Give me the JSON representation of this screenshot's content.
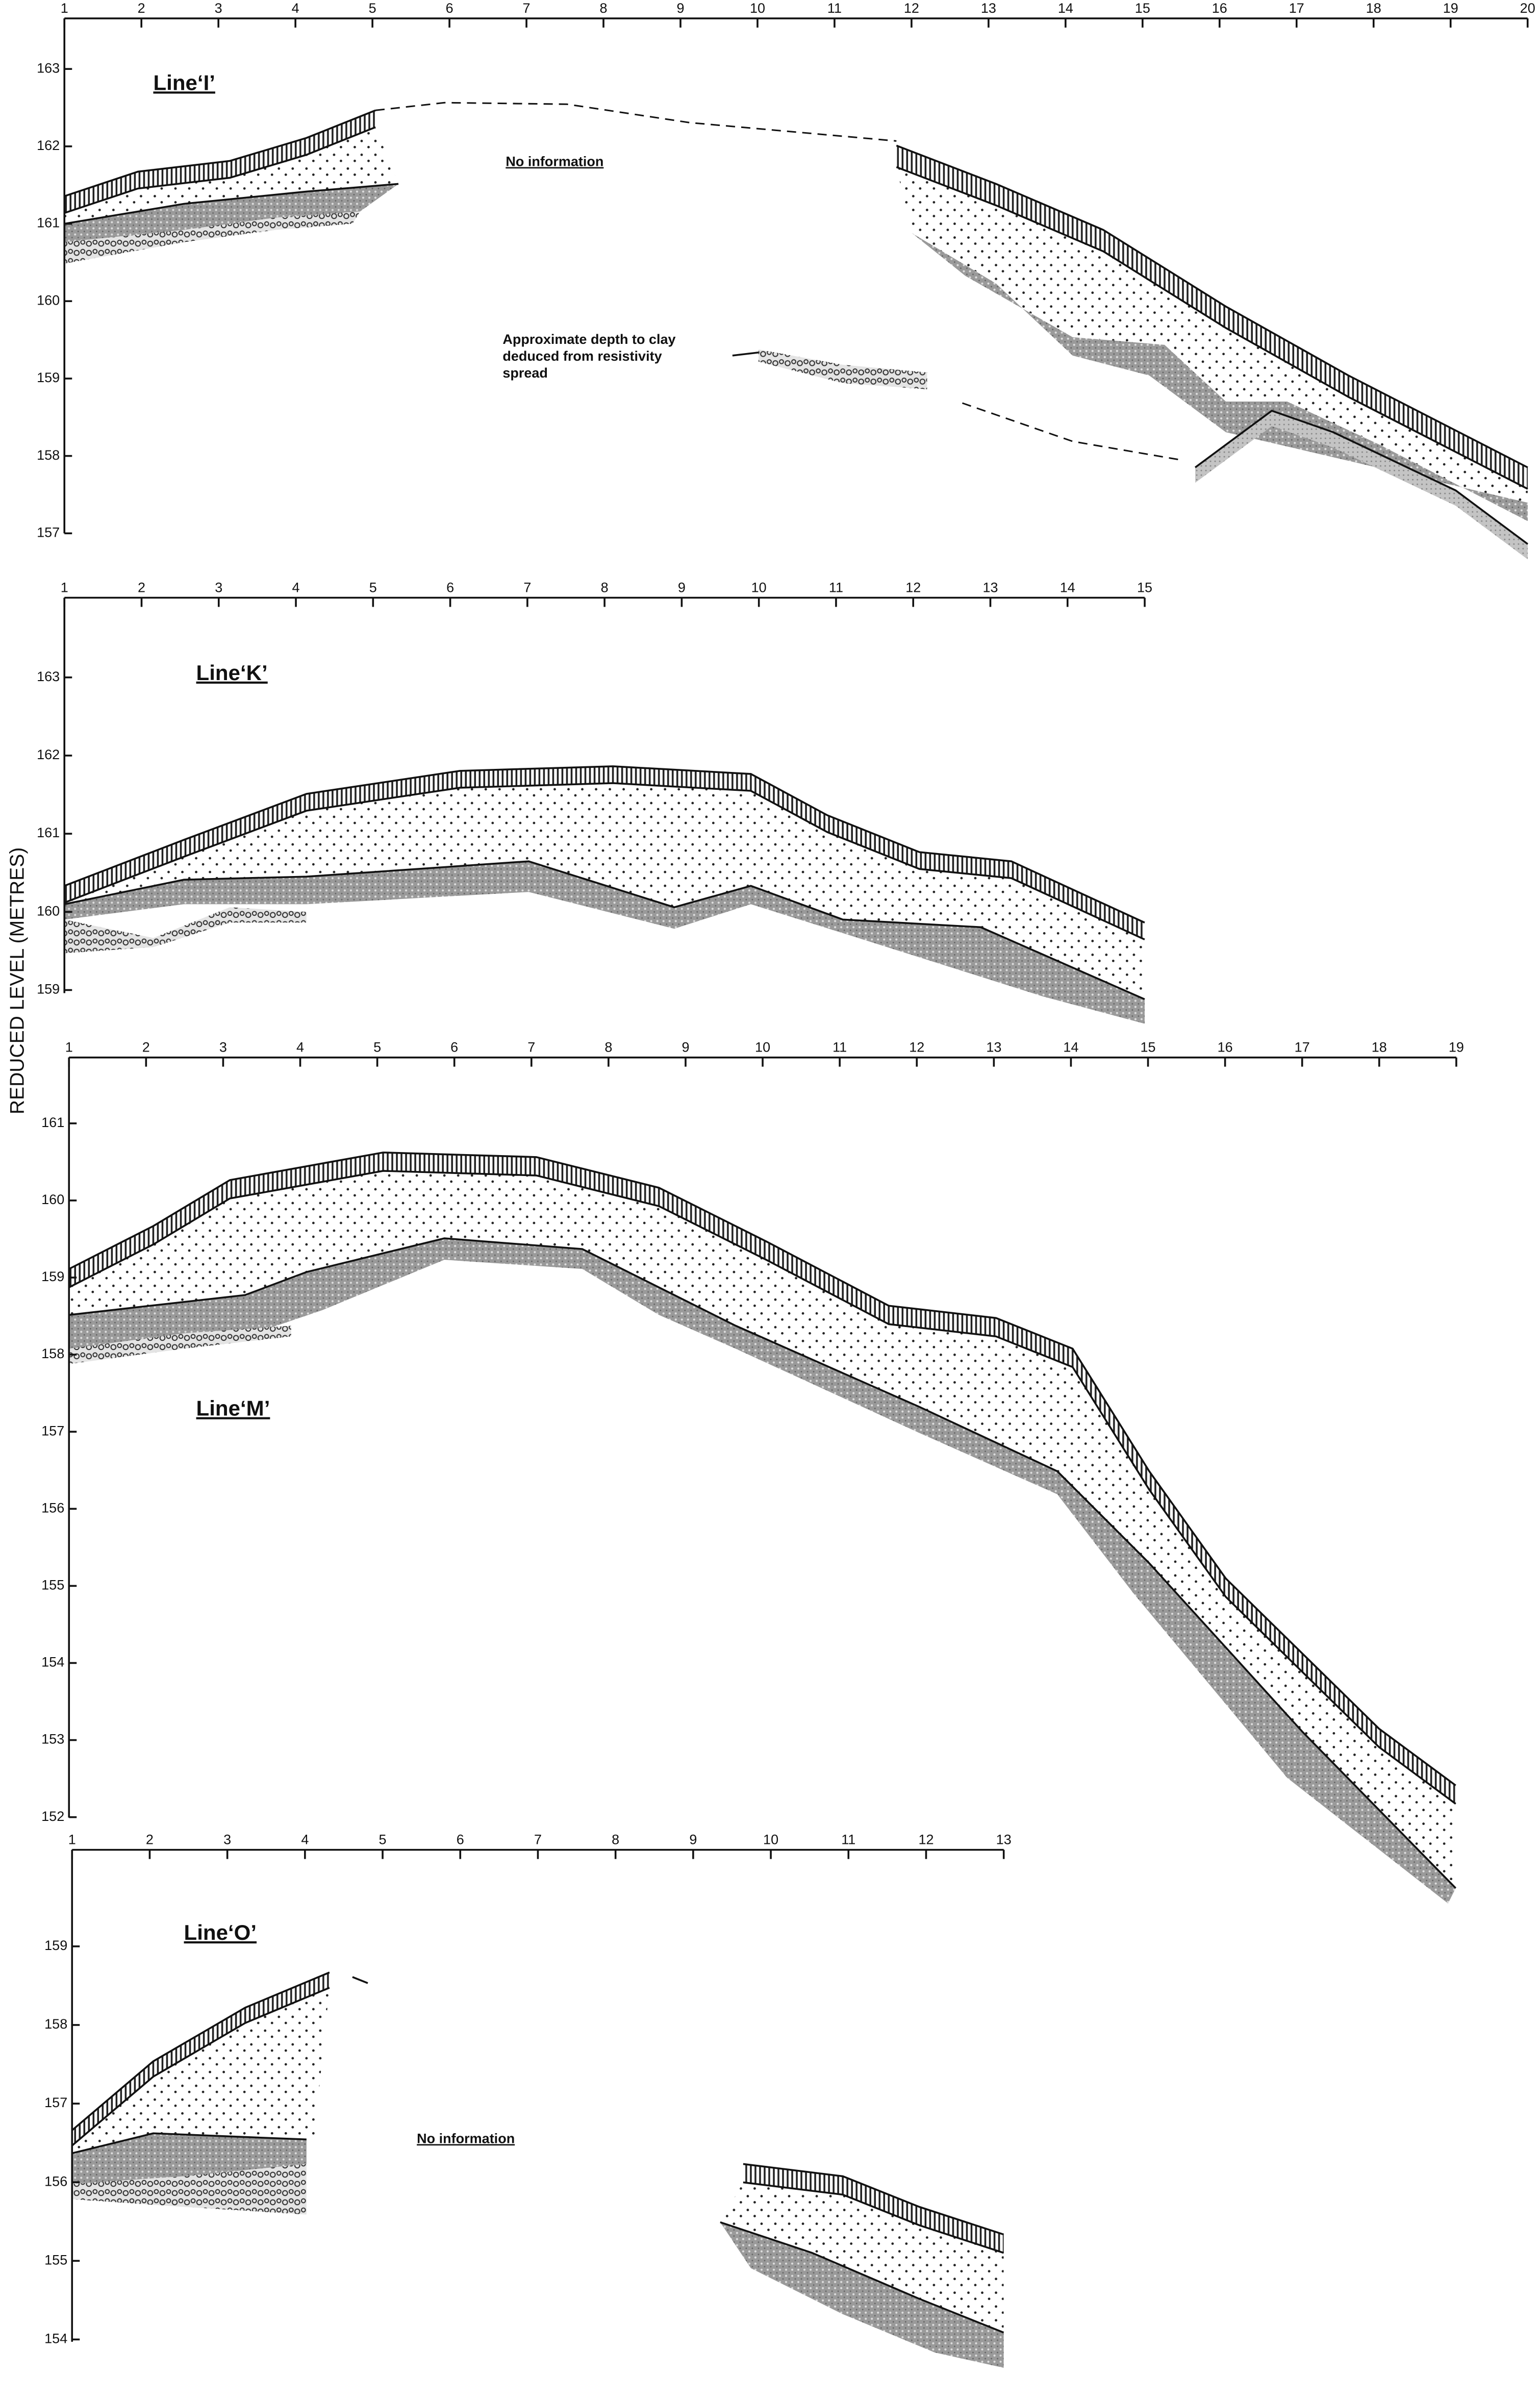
{
  "y_axis_label": "REDUCED LEVEL (METRES)",
  "panels": [
    {
      "title": "Line‘I’",
      "x_ticks": [
        1,
        2,
        3,
        4,
        5,
        6,
        7,
        8,
        9,
        10,
        11,
        12,
        13,
        14,
        15,
        16,
        17,
        18,
        19,
        20
      ],
      "y_ticks": [
        163,
        162,
        161,
        160,
        159,
        158,
        157
      ],
      "annotations": [
        "No information",
        "Approximate depth to clay",
        "deduced from resistivity",
        "spread"
      ]
    },
    {
      "title": "Line‘K’",
      "x_ticks": [
        1,
        2,
        3,
        4,
        5,
        6,
        7,
        8,
        9,
        10,
        11,
        12,
        13,
        14,
        15
      ],
      "y_ticks": [
        163,
        162,
        161,
        160,
        159
      ],
      "annotations": []
    },
    {
      "title": "Line‘M’",
      "x_ticks": [
        1,
        2,
        3,
        4,
        5,
        6,
        7,
        8,
        9,
        10,
        11,
        12,
        13,
        14,
        15,
        16,
        17,
        18,
        19
      ],
      "y_ticks": [
        161,
        160,
        159,
        158,
        157,
        156,
        155,
        154,
        153,
        152
      ],
      "annotations": []
    },
    {
      "title": "Line‘O’",
      "x_ticks": [
        1,
        2,
        3,
        4,
        5,
        6,
        7,
        8,
        9,
        10,
        11,
        12,
        13
      ],
      "y_ticks": [
        159,
        158,
        157,
        156,
        155,
        154
      ],
      "annotations": [
        "No information"
      ]
    }
  ]
}
